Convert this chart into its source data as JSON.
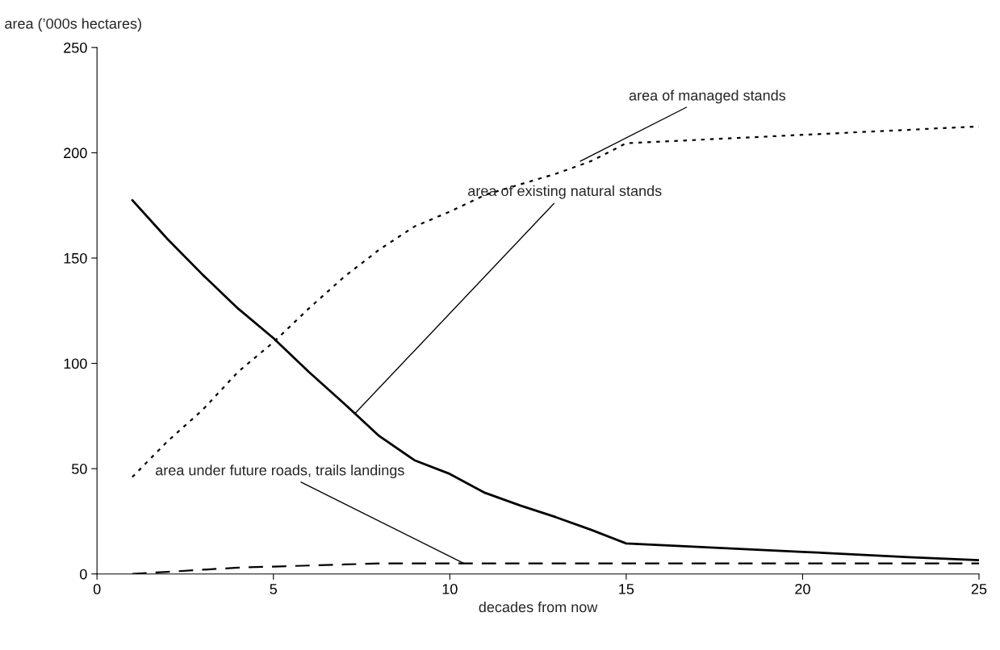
{
  "chart_data": {
    "type": "line",
    "xlabel": "decades from now",
    "ylabel": "area (’000s hectares)",
    "xlim": [
      0,
      25
    ],
    "xticks": [
      0,
      5,
      10,
      15,
      20,
      25
    ],
    "ylim": [
      0,
      250
    ],
    "yticks": [
      0,
      50,
      100,
      150,
      200,
      250
    ],
    "grid": false,
    "marker": "none",
    "series": [
      {
        "color": "#000000",
        "line_style": "solid",
        "x": [
          1,
          2,
          3,
          4,
          5,
          6,
          7,
          8,
          9,
          10,
          11,
          12,
          13,
          14,
          15,
          20,
          23,
          25
        ],
        "values": [
          177.5,
          159,
          142,
          126,
          112,
          96,
          81,
          65.5,
          54,
          47.5,
          38.5,
          32.5,
          27,
          21,
          14.5,
          10.5,
          8,
          6.5
        ]
      },
      {
        "color": "#000000",
        "line_style": "dotted",
        "x": [
          1,
          2,
          3,
          4,
          5,
          6,
          7,
          8,
          9,
          10,
          11,
          12,
          13,
          14,
          15,
          20,
          25
        ],
        "values": [
          46,
          63,
          78,
          96,
          110,
          126,
          141,
          154,
          165,
          172,
          180,
          185,
          190,
          196,
          204.5,
          208.5,
          212.5
        ]
      },
      {
        "color": "#000000",
        "line_style": "dashed",
        "x": [
          1,
          2,
          3,
          4,
          5,
          6,
          7,
          8,
          10,
          15,
          25
        ],
        "values": [
          0,
          1,
          2,
          3,
          3.5,
          4,
          4.5,
          5,
          5,
          5,
          5
        ]
      }
    ],
    "annotations": [
      {
        "text": "area of managed stands",
        "x": 13.7,
        "y": 196
      },
      {
        "text": "area of existing natural stands",
        "x": 7.3,
        "y": 76
      },
      {
        "text": "area under future roads, trails landings",
        "x": 10.4,
        "y": 5
      }
    ]
  }
}
